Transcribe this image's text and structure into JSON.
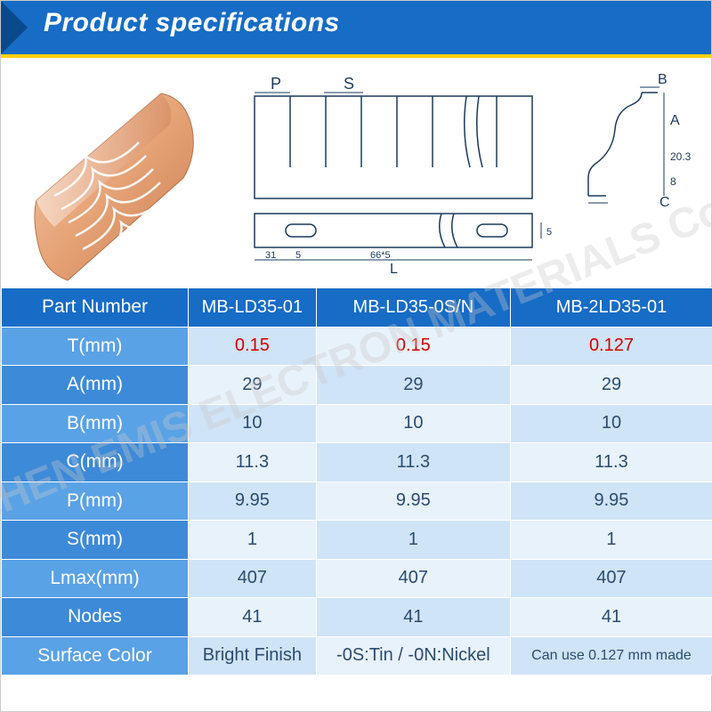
{
  "header": {
    "title": "Product specifications"
  },
  "watermark": "SEHZHEN EMIS ELECTRON MATERIALS Co. LTD",
  "diagram": {
    "labels": {
      "P": "P",
      "S": "S",
      "L": "L",
      "A": "A",
      "B": "B",
      "C": "C"
    },
    "dims": {
      "a_h": "20.3",
      "a_sub": "8",
      "slot_left": "31",
      "slot_w": "5",
      "slot_pitch": "66*5",
      "slot_h": "5"
    }
  },
  "table": {
    "header_bg": "#176cc6",
    "row_label_bg_odd": "#5aa2e6",
    "row_label_bg_even": "#3d8ad8",
    "data_bg_a": "#e8f2fb",
    "data_bg_b": "#cfe4f6",
    "columns": [
      "MB-LD35-01",
      "MB-LD35-0S/N",
      "MB-2LD35-01"
    ],
    "rows": [
      {
        "label": "Part Number",
        "cells": [
          "MB-LD35-01",
          "MB-LD35-0S/N",
          "MB-2LD35-01"
        ],
        "is_header": true
      },
      {
        "label": "T(mm)",
        "cells": [
          "0.15",
          "0.15",
          "0.127"
        ],
        "highlight": true
      },
      {
        "label": "A(mm)",
        "cells": [
          "29",
          "29",
          "29"
        ]
      },
      {
        "label": "B(mm)",
        "cells": [
          "10",
          "10",
          "10"
        ]
      },
      {
        "label": "C(mm)",
        "cells": [
          "11.3",
          "11.3",
          "11.3"
        ]
      },
      {
        "label": "P(mm)",
        "cells": [
          "9.95",
          "9.95",
          "9.95"
        ]
      },
      {
        "label": "S(mm)",
        "cells": [
          "1",
          "1",
          "1"
        ]
      },
      {
        "label": "Lmax(mm)",
        "cells": [
          "407",
          "407",
          "407"
        ]
      },
      {
        "label": "Nodes",
        "cells": [
          "41",
          "41",
          "41"
        ]
      },
      {
        "label": "Surface Color",
        "cells": [
          "Bright Finish",
          "-0S:Tin / -0N:Nickel",
          "Can use 0.127 mm made"
        ],
        "small_last": true
      }
    ]
  }
}
